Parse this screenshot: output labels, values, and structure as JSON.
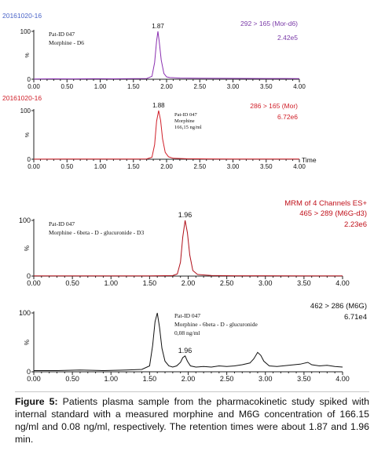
{
  "chart_data": [
    {
      "type": "line",
      "header_left": "20161020-16",
      "header_right": "292 > 165 (Mor-d6)",
      "intensity": "2.42e5",
      "sample_label": [
        "Pat-ID 047",
        "Morphine - D6"
      ],
      "peak_label": "1.87",
      "xlabel": "",
      "ylabel": "%",
      "xlim": [
        0,
        4.0
      ],
      "ylim": [
        0,
        100
      ],
      "x_ticks": [
        "0.00",
        "0.50",
        "1.00",
        "1.50",
        "2.00",
        "2.50",
        "3.00",
        "3.50",
        "4.00"
      ],
      "y_tick_labels": [
        "100",
        "0"
      ],
      "series": [
        {
          "color": "#8a2fb0",
          "x": [
            0.0,
            0.3,
            0.6,
            0.9,
            1.2,
            1.5,
            1.7,
            1.78,
            1.82,
            1.85,
            1.87,
            1.89,
            1.92,
            1.96,
            2.0,
            2.05,
            2.2,
            2.5,
            2.9,
            3.2,
            3.5,
            3.8,
            4.0
          ],
          "y": [
            0.5,
            0.8,
            0.6,
            1.0,
            0.8,
            1.2,
            1.5,
            6,
            35,
            80,
            100,
            78,
            40,
            12,
            5,
            3.5,
            2.5,
            2,
            1.8,
            1.6,
            1.5,
            1.4,
            1.3
          ]
        }
      ]
    },
    {
      "type": "line",
      "header_left": "20161020-16",
      "header_right": "286 > 165 (Mor)",
      "intensity": "6.72e6",
      "sample_label": [
        "Pat-ID 047",
        "Morphine",
        "166,15 ng/ml"
      ],
      "peak_label": "1.88",
      "xlabel": "Time",
      "ylabel": "%",
      "xlim": [
        0,
        4.0
      ],
      "ylim": [
        0,
        100
      ],
      "x_ticks": [
        "0.00",
        "0.50",
        "1.00",
        "1.50",
        "2.00",
        "2.50",
        "3.00",
        "3.50",
        "4.00"
      ],
      "y_tick_labels": [
        "100",
        "0"
      ],
      "series": [
        {
          "color": "#d0202a",
          "x": [
            0.0,
            0.5,
            1.0,
            1.5,
            1.7,
            1.78,
            1.82,
            1.85,
            1.88,
            1.91,
            1.94,
            1.98,
            2.03,
            2.1,
            2.3,
            2.6,
            3.0,
            3.5,
            4.0
          ],
          "y": [
            0.2,
            0.3,
            0.3,
            0.4,
            0.6,
            4,
            30,
            78,
            100,
            80,
            42,
            14,
            5,
            2,
            1,
            0.6,
            0.5,
            0.4,
            0.4
          ]
        }
      ]
    },
    {
      "type": "line",
      "header_left": "",
      "header_right": "465 > 289 (M6G-d3)",
      "header_right_top": "MRM of 4 Channels ES+",
      "intensity": "2.23e6",
      "sample_label": [
        "Pat-ID 047",
        "Morphine - 6beta - D - glucuronide - D3"
      ],
      "peak_label": "1.96",
      "xlabel": "",
      "ylabel": "%",
      "xlim": [
        0,
        4.0
      ],
      "ylim": [
        0,
        100
      ],
      "x_ticks": [
        "0.00",
        "0.50",
        "1.00",
        "1.50",
        "2.00",
        "2.50",
        "3.00",
        "3.50",
        "4.00"
      ],
      "y_tick_labels": [
        "100",
        "0"
      ],
      "series": [
        {
          "color": "#b0101a",
          "x": [
            0.0,
            0.5,
            1.0,
            1.5,
            1.8,
            1.86,
            1.9,
            1.93,
            1.96,
            1.99,
            2.02,
            2.06,
            2.12,
            2.3,
            2.6,
            3.0,
            3.5,
            4.0
          ],
          "y": [
            0.3,
            0.3,
            0.3,
            0.4,
            0.8,
            4,
            25,
            70,
            100,
            78,
            38,
            10,
            3,
            1,
            0.6,
            0.5,
            0.4,
            0.4
          ]
        }
      ]
    },
    {
      "type": "line",
      "header_left": "",
      "header_right": "462 > 286 (M6G)",
      "intensity": "6.71e4",
      "sample_label": [
        "Pat-ID 047",
        "Morphine - 6beta - D - glucuronide",
        "0,08 ng/ml"
      ],
      "peak_label": "1.96",
      "xlabel": "",
      "ylabel": "%",
      "xlim": [
        0,
        4.0
      ],
      "ylim": [
        0,
        100
      ],
      "x_ticks": [
        "0.00",
        "0.50",
        "1.00",
        "1.50",
        "2.00",
        "2.50",
        "3.00",
        "3.50",
        "4.00"
      ],
      "y_tick_labels": [
        "100",
        "0"
      ],
      "series": [
        {
          "color": "#111111",
          "x": [
            0.0,
            0.3,
            0.6,
            0.9,
            1.2,
            1.4,
            1.5,
            1.54,
            1.57,
            1.6,
            1.63,
            1.66,
            1.7,
            1.75,
            1.8,
            1.85,
            1.9,
            1.93,
            1.96,
            1.99,
            2.03,
            2.1,
            2.2,
            2.3,
            2.4,
            2.5,
            2.6,
            2.7,
            2.8,
            2.85,
            2.9,
            2.94,
            2.98,
            3.05,
            3.15,
            3.3,
            3.45,
            3.55,
            3.6,
            3.7,
            3.8,
            3.9,
            4.0
          ],
          "y": [
            2,
            2,
            3,
            2,
            3,
            4,
            10,
            45,
            85,
            100,
            75,
            40,
            18,
            10,
            8,
            10,
            16,
            24,
            27,
            18,
            10,
            8,
            9,
            8,
            10,
            9,
            10,
            12,
            15,
            22,
            33,
            28,
            18,
            10,
            9,
            11,
            13,
            16,
            12,
            10,
            11,
            9,
            8
          ]
        }
      ]
    }
  ],
  "caption": {
    "label": "Figure 5:",
    "text": "Patients plasma sample from the pharmacokinetic study spiked with internal standard with a measured morphine and M6G concentration of 166.15 ng/ml and 0.08 ng/ml, respectively. The retention times were about 1.87 and 1.96 min."
  }
}
